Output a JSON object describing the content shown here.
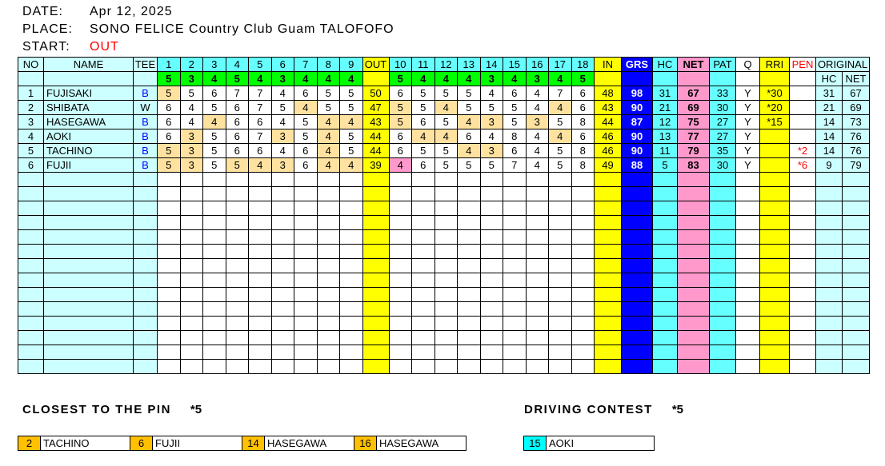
{
  "header": {
    "date_label": "DATE:",
    "date_value": "Apr 12, 2025",
    "place_label": "PLACE:",
    "place_value": "SONO FELICE Country Club Guam TALOFOFO",
    "start_label": "START:",
    "start_value": "OUT"
  },
  "colors": {
    "lcyan": "#CCFFFF",
    "cyan": "#66FFFF",
    "bcyan": "#00FFFF",
    "green": "#00FF00",
    "yellow": "#FFFF00",
    "blue": "#0000FF",
    "pink": "#FF99CC",
    "tan": "#FFE2A0",
    "orange": "#FFC000",
    "red": "#FF0000"
  },
  "scorecard": {
    "columns": {
      "no": "NO",
      "name": "NAME",
      "tee": "TEE",
      "out": "OUT",
      "in": "IN",
      "grs": "GRS",
      "hc": "HC",
      "net": "NET",
      "pat": "PAT",
      "q": "Q",
      "rri": "RRI",
      "pen": "PEN",
      "original": "ORIGINAL",
      "orig_hc": "HC",
      "orig_net": "NET"
    },
    "hole_numbers_out": [
      "1",
      "2",
      "3",
      "4",
      "5",
      "6",
      "7",
      "8",
      "9"
    ],
    "hole_numbers_in": [
      "10",
      "11",
      "12",
      "13",
      "14",
      "15",
      "16",
      "17",
      "18"
    ],
    "par_out": [
      5,
      3,
      4,
      5,
      4,
      3,
      4,
      4,
      4
    ],
    "par_in": [
      5,
      4,
      4,
      4,
      3,
      4,
      3,
      4,
      5
    ],
    "players": [
      {
        "no": "1",
        "name": "FUJISAKI",
        "tee": "B",
        "out_scores": [
          5,
          5,
          6,
          7,
          7,
          4,
          6,
          5,
          5
        ],
        "out": "50",
        "in_scores": [
          6,
          5,
          5,
          5,
          4,
          6,
          4,
          7,
          6
        ],
        "in": "48",
        "grs": "98",
        "hc": "31",
        "net": "67",
        "pat": "33",
        "q": "Y",
        "rri": "*30",
        "pen": "",
        "orig_hc": "31",
        "orig_net": "67"
      },
      {
        "no": "2",
        "name": "SHIBATA",
        "tee": "W",
        "out_scores": [
          6,
          4,
          5,
          6,
          7,
          5,
          4,
          5,
          5
        ],
        "out": "47",
        "in_scores": [
          5,
          5,
          4,
          5,
          5,
          5,
          4,
          4,
          6
        ],
        "in": "43",
        "grs": "90",
        "hc": "21",
        "net": "69",
        "pat": "30",
        "q": "Y",
        "rri": "*20",
        "pen": "",
        "orig_hc": "21",
        "orig_net": "69"
      },
      {
        "no": "3",
        "name": "HASEGAWA",
        "tee": "B",
        "out_scores": [
          6,
          4,
          4,
          6,
          6,
          4,
          5,
          4,
          4
        ],
        "out": "43",
        "in_scores": [
          5,
          6,
          5,
          4,
          3,
          5,
          3,
          5,
          8
        ],
        "in": "44",
        "grs": "87",
        "hc": "12",
        "net": "75",
        "pat": "27",
        "q": "Y",
        "rri": "*15",
        "pen": "",
        "orig_hc": "14",
        "orig_net": "73"
      },
      {
        "no": "4",
        "name": "AOKI",
        "tee": "B",
        "out_scores": [
          6,
          3,
          5,
          6,
          7,
          3,
          5,
          4,
          5
        ],
        "out": "44",
        "in_scores": [
          6,
          4,
          4,
          6,
          4,
          8,
          4,
          4,
          6
        ],
        "in": "46",
        "grs": "90",
        "hc": "13",
        "net": "77",
        "pat": "27",
        "q": "Y",
        "rri": "",
        "pen": "",
        "orig_hc": "14",
        "orig_net": "76"
      },
      {
        "no": "5",
        "name": "TACHINO",
        "tee": "B",
        "out_scores": [
          5,
          3,
          5,
          6,
          6,
          4,
          6,
          4,
          5
        ],
        "out": "44",
        "in_scores": [
          6,
          5,
          5,
          4,
          3,
          6,
          4,
          5,
          8
        ],
        "in": "46",
        "grs": "90",
        "hc": "11",
        "net": "79",
        "pat": "35",
        "q": "Y",
        "rri": "",
        "pen": "*2",
        "orig_hc": "14",
        "orig_net": "76"
      },
      {
        "no": "6",
        "name": "FUJII",
        "tee": "B",
        "out_scores": [
          5,
          3,
          5,
          5,
          4,
          3,
          6,
          4,
          4
        ],
        "out": "39",
        "in_scores": [
          4,
          6,
          5,
          5,
          5,
          7,
          4,
          5,
          8
        ],
        "in": "49",
        "grs": "88",
        "hc": "5",
        "net": "83",
        "pat": "30",
        "q": "Y",
        "rri": "",
        "pen": "*6",
        "orig_hc": "9",
        "orig_net": "79"
      }
    ],
    "empty_rows": 14
  },
  "closest_to_the_pin": {
    "title": "CLOSEST TO THE PIN",
    "mark": "*5",
    "entries": [
      {
        "hole": "2",
        "name": "TACHINO"
      },
      {
        "hole": "6",
        "name": "FUJII"
      },
      {
        "hole": "14",
        "name": "HASEGAWA"
      },
      {
        "hole": "16",
        "name": "HASEGAWA"
      }
    ]
  },
  "driving_contest": {
    "title": "DRIVING CONTEST",
    "mark": "*5",
    "entries": [
      {
        "hole": "15",
        "name": "AOKI"
      }
    ]
  }
}
